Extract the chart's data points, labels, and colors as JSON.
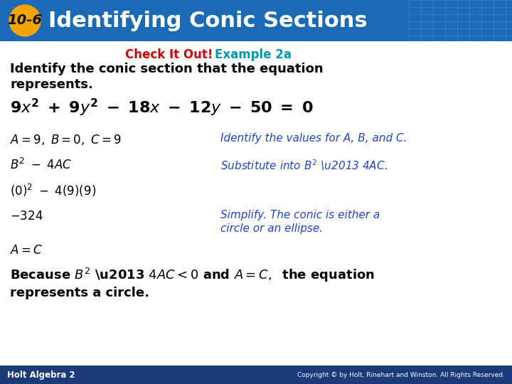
{
  "header_bg_color": "#1a6ab5",
  "header_text": "Identifying Conic Sections",
  "header_number": "10-6",
  "header_number_bg": "#f0a500",
  "check_it_out_color": "#cc0000",
  "example_color": "#0099aa",
  "body_bg_color": "#ffffff",
  "blue_note": "#2244cc",
  "footer_bg": "#1a3a7a",
  "footer_left": "Holt Algebra 2",
  "footer_right": "Copyright © by Holt, Rinehart and Winston. All Rights Reserved."
}
